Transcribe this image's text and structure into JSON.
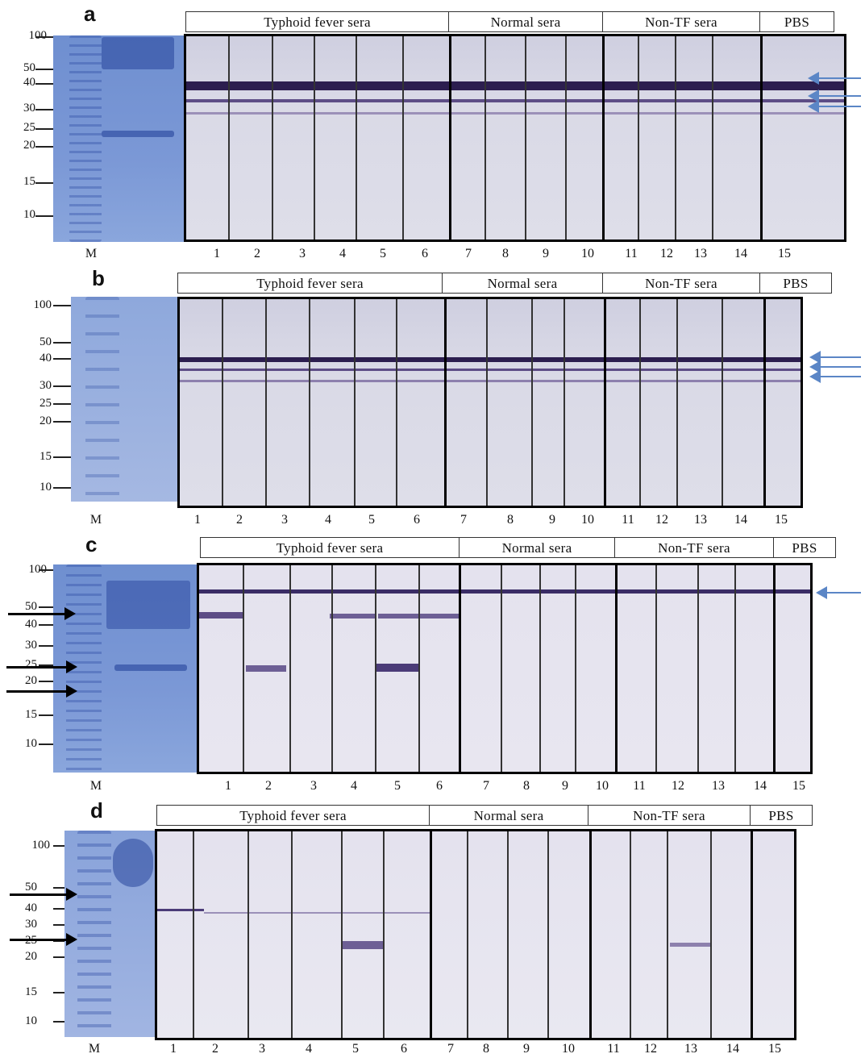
{
  "panels": [
    {
      "letter": "a",
      "headers": {
        "typhoid": "Typhoid fever sera",
        "normal": "Normal sera",
        "nontf": "Non-TF sera",
        "pbs": "PBS"
      }
    },
    {
      "letter": "b",
      "headers": {
        "typhoid": "Typhoid fever sera",
        "normal": "Normal sera",
        "nontf": "Non-TF sera",
        "pbs": "PBS"
      }
    },
    {
      "letter": "c",
      "headers": {
        "typhoid": "Typhoid fever sera",
        "normal": "Normal sera",
        "nontf": "Non-TF sera",
        "pbs": "PBS"
      }
    },
    {
      "letter": "d",
      "headers": {
        "typhoid": "Typhoid fever sera",
        "normal": "Normal sera",
        "nontf": "Non-TF sera",
        "pbs": "PBS"
      }
    }
  ],
  "marker_label": "M",
  "mw_markers": [
    "100",
    "50",
    "40",
    "30",
    "25",
    "20",
    "15",
    "10"
  ],
  "lanes": [
    "1",
    "2",
    "3",
    "4",
    "5",
    "6",
    "7",
    "8",
    "9",
    "10",
    "11",
    "12",
    "13",
    "14",
    "15"
  ],
  "colors": {
    "gel": "#7b98d6",
    "band": "#2c1e4f",
    "arrow_blue": "#5b86c6",
    "arrow_black": "#000000"
  }
}
